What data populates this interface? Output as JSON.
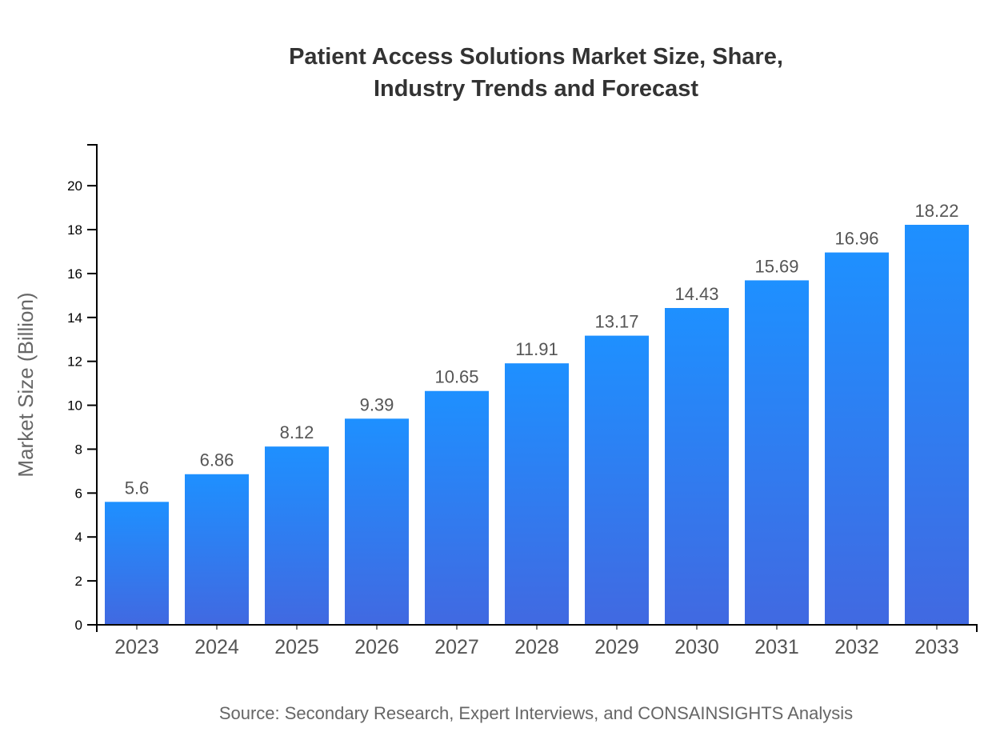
{
  "chart_data": {
    "type": "bar",
    "title_lines": [
      "Patient Access Solutions Market Size, Share,",
      "Industry Trends and Forecast"
    ],
    "xlabel": "",
    "ylabel": "Market Size (Billion)",
    "categories": [
      "2023",
      "2024",
      "2025",
      "2026",
      "2027",
      "2028",
      "2029",
      "2030",
      "2031",
      "2032",
      "2033"
    ],
    "values": [
      5.6,
      6.86,
      8.12,
      9.39,
      10.65,
      11.91,
      13.17,
      14.43,
      15.69,
      16.96,
      18.22
    ],
    "data_labels": [
      "5.6",
      "6.86",
      "8.12",
      "9.39",
      "10.65",
      "11.91",
      "13.17",
      "14.43",
      "15.69",
      "16.96",
      "18.22"
    ],
    "ylim": [
      0,
      21.864
    ],
    "yticks": [
      0,
      2,
      4,
      6,
      8,
      10,
      12,
      14,
      16,
      18,
      20
    ],
    "grid": false,
    "colors": {
      "bar_top": "#1E90FF",
      "bar_bottom": "#4169E1"
    },
    "source": "Source: Secondary Research, Expert Interviews, and CONSAINSIGHTS Analysis"
  }
}
